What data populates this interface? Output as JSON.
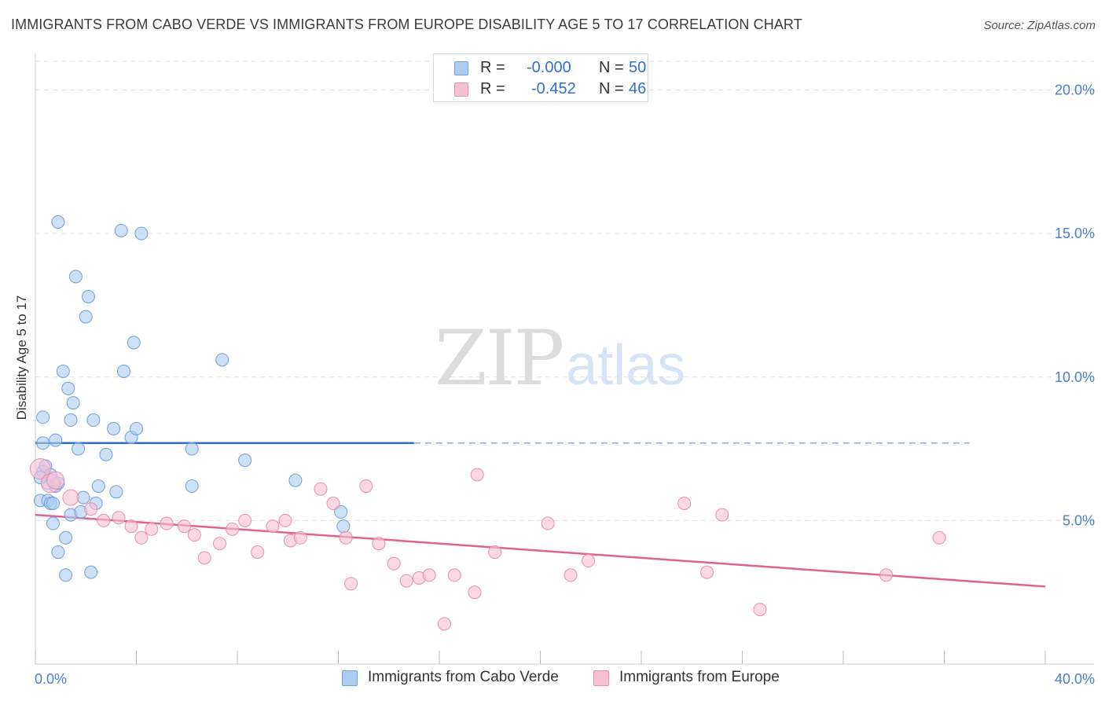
{
  "title": "IMMIGRANTS FROM CABO VERDE VS IMMIGRANTS FROM EUROPE DISABILITY AGE 5 TO 17 CORRELATION CHART",
  "source": "Source: ZipAtlas.com",
  "watermark": {
    "zip": "ZIP",
    "atlas": "atlas"
  },
  "legend": {
    "series1": {
      "r_label": "R =",
      "r_value": "-0.000",
      "n_label": "N =",
      "n_value": "50"
    },
    "series2": {
      "r_label": "R =",
      "r_value": "-0.452",
      "n_label": "N =",
      "n_value": "46"
    }
  },
  "colors": {
    "blue_fill": "#aecbf0",
    "blue_stroke": "#6f9fdd",
    "blue_line": "#2f6fd0",
    "pink_fill": "#f7c0d3",
    "pink_stroke": "#e78fae",
    "pink_line": "#e0628f",
    "grid": "#e0e0e0",
    "tick_text": "#4a7fd0"
  },
  "chart_data": {
    "type": "scatter",
    "title": "IMMIGRANTS FROM CABO VERDE VS IMMIGRANTS FROM EUROPE DISABILITY AGE 5 TO 17 CORRELATION CHART",
    "xlabel": "",
    "ylabel": "Disability Age 5 to 17",
    "xlim": [
      0,
      40
    ],
    "ylim": [
      0,
      21
    ],
    "x_tick_labels": [
      {
        "value": 0,
        "label": "0.0%"
      },
      {
        "value": 40,
        "label": "40.0%"
      }
    ],
    "y_tick_labels": [
      {
        "value": 5,
        "label": "5.0%"
      },
      {
        "value": 10,
        "label": "10.0%"
      },
      {
        "value": 15,
        "label": "15.0%"
      },
      {
        "value": 20,
        "label": "20.0%"
      }
    ],
    "series": [
      {
        "name": "Immigrants from Cabo Verde",
        "color": "#aecbf0",
        "points": [
          [
            0.2,
            5.7
          ],
          [
            0.3,
            6.7
          ],
          [
            0.3,
            7.7
          ],
          [
            0.3,
            8.6
          ],
          [
            0.4,
            6.9
          ],
          [
            0.5,
            5.7
          ],
          [
            0.5,
            6.3
          ],
          [
            0.6,
            5.6
          ],
          [
            0.6,
            6.6
          ],
          [
            0.7,
            5.6
          ],
          [
            0.7,
            4.9
          ],
          [
            0.8,
            6.2
          ],
          [
            0.8,
            7.8
          ],
          [
            0.9,
            3.9
          ],
          [
            0.9,
            15.4
          ],
          [
            0.9,
            6.3
          ],
          [
            1.1,
            10.2
          ],
          [
            1.2,
            3.1
          ],
          [
            1.2,
            4.4
          ],
          [
            1.3,
            9.6
          ],
          [
            1.4,
            8.5
          ],
          [
            1.4,
            5.2
          ],
          [
            1.5,
            9.1
          ],
          [
            1.6,
            13.5
          ],
          [
            1.7,
            7.5
          ],
          [
            1.8,
            5.3
          ],
          [
            1.9,
            5.8
          ],
          [
            2.0,
            12.1
          ],
          [
            2.1,
            12.8
          ],
          [
            2.2,
            3.2
          ],
          [
            2.3,
            8.5
          ],
          [
            2.4,
            5.6
          ],
          [
            2.5,
            6.2
          ],
          [
            2.8,
            7.3
          ],
          [
            3.1,
            8.2
          ],
          [
            3.2,
            6.0
          ],
          [
            3.4,
            15.1
          ],
          [
            3.5,
            10.2
          ],
          [
            3.8,
            7.9
          ],
          [
            3.9,
            11.2
          ],
          [
            4.0,
            8.2
          ],
          [
            4.2,
            15.0
          ],
          [
            6.2,
            6.2
          ],
          [
            6.2,
            7.5
          ],
          [
            7.4,
            10.6
          ],
          [
            8.3,
            7.1
          ],
          [
            10.3,
            6.4
          ],
          [
            12.1,
            5.3
          ],
          [
            12.2,
            4.8
          ],
          [
            0.2,
            6.5
          ]
        ],
        "trend": {
          "x": [
            0,
            15
          ],
          "y": [
            7.7,
            7.7
          ],
          "extended_to": 37
        }
      },
      {
        "name": "Immigrants from Europe",
        "color": "#f7c0d3",
        "points": [
          [
            0.2,
            6.8
          ],
          [
            0.6,
            6.3
          ],
          [
            0.8,
            6.4
          ],
          [
            1.4,
            5.8
          ],
          [
            2.2,
            5.4
          ],
          [
            2.7,
            5.0
          ],
          [
            3.3,
            5.1
          ],
          [
            3.8,
            4.8
          ],
          [
            4.2,
            4.4
          ],
          [
            4.6,
            4.7
          ],
          [
            5.2,
            4.9
          ],
          [
            5.9,
            4.8
          ],
          [
            6.3,
            4.5
          ],
          [
            6.7,
            3.7
          ],
          [
            7.3,
            4.2
          ],
          [
            7.8,
            4.7
          ],
          [
            8.3,
            5.0
          ],
          [
            8.8,
            3.9
          ],
          [
            9.4,
            4.8
          ],
          [
            9.9,
            5.0
          ],
          [
            10.1,
            4.3
          ],
          [
            10.5,
            4.4
          ],
          [
            11.3,
            6.1
          ],
          [
            11.8,
            5.6
          ],
          [
            12.3,
            4.4
          ],
          [
            12.5,
            2.8
          ],
          [
            13.1,
            6.2
          ],
          [
            13.6,
            4.2
          ],
          [
            14.2,
            3.5
          ],
          [
            14.7,
            2.9
          ],
          [
            15.2,
            3.0
          ],
          [
            15.6,
            3.1
          ],
          [
            16.2,
            1.4
          ],
          [
            16.6,
            3.1
          ],
          [
            17.4,
            2.5
          ],
          [
            17.5,
            6.6
          ],
          [
            18.2,
            3.9
          ],
          [
            20.3,
            4.9
          ],
          [
            21.2,
            3.1
          ],
          [
            21.9,
            3.6
          ],
          [
            25.7,
            5.6
          ],
          [
            26.6,
            3.2
          ],
          [
            27.2,
            5.2
          ],
          [
            28.7,
            1.9
          ],
          [
            33.7,
            3.1
          ],
          [
            35.8,
            4.4
          ]
        ],
        "trend": {
          "x": [
            0,
            40
          ],
          "y": [
            5.2,
            2.7
          ]
        }
      }
    ],
    "legend": [
      "Immigrants from Cabo Verde",
      "Immigrants from Europe"
    ],
    "grid": true
  }
}
